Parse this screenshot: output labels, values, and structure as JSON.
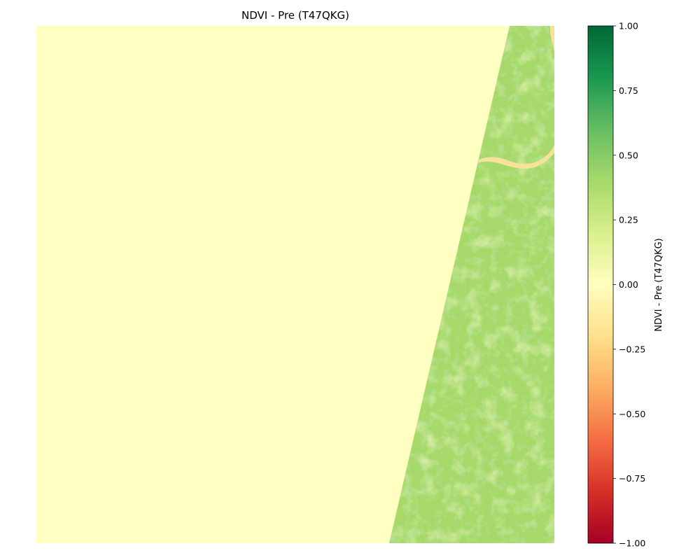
{
  "chart_data": {
    "type": "heatmap",
    "title": "NDVI - Pre (T47QKG)",
    "axes_visible": false,
    "colormap": "RdYlGn",
    "colorbar": {
      "label": "NDVI - Pre (T47QKG)",
      "range": [
        -1.0,
        1.0
      ],
      "ticks": [
        1.0,
        0.75,
        0.5,
        0.25,
        0.0,
        -0.25,
        -0.5,
        -0.75,
        -1.0
      ],
      "tick_labels": [
        "1.00",
        "0.75",
        "0.50",
        "0.25",
        "0.00",
        "−0.25",
        "−0.50",
        "−0.75",
        "−1.00"
      ],
      "placement": "right"
    },
    "regions": [
      {
        "label": "no-data area (west of swath)",
        "ndvi": 0.0
      },
      {
        "label": "vegetated swath (east)",
        "ndvi_typical": 0.45,
        "ndvi_range": [
          0.2,
          0.6
        ]
      },
      {
        "label": "river channel",
        "ndvi": -0.15
      }
    ]
  },
  "colors": {
    "nodata": "#feffc0",
    "vegetation": "#a6d96a",
    "river": "#f7e29a",
    "cmap_stops": [
      "#a50026",
      "#d73027",
      "#f46d43",
      "#fdae61",
      "#fee08b",
      "#ffffbf",
      "#d9ef8b",
      "#a6d96a",
      "#66bd63",
      "#1a9850",
      "#006837"
    ]
  }
}
